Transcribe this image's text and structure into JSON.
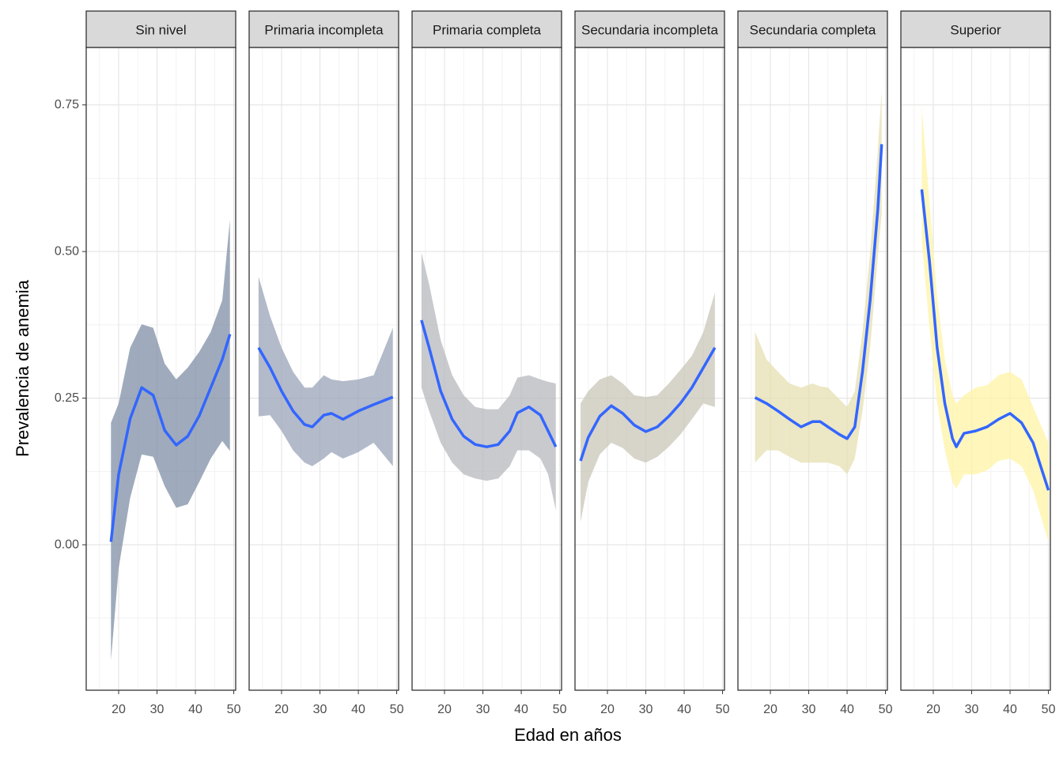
{
  "chart_data": {
    "type": "line",
    "x_label": "Edad en años",
    "y_label": "Prevalencia de anemia",
    "xlim": [
      11.55,
      50.5
    ],
    "ylim": [
      -0.248,
      0.848
    ],
    "xticks": [
      20,
      30,
      40,
      50
    ],
    "yticks": [
      {
        "value": 0,
        "label": "0.00"
      },
      {
        "value": 0.25,
        "label": "0.25"
      },
      {
        "value": 0.5,
        "label": "0.50"
      },
      {
        "value": 0.75,
        "label": "0.75"
      }
    ],
    "xminor": [
      15,
      25,
      35,
      45
    ],
    "yminor": [
      -0.125,
      0.125,
      0.375,
      0.625
    ],
    "grid": true,
    "line_color": "#3366ff",
    "panels": [
      {
        "title": "Sin nivel",
        "color": "#7f8fa6",
        "x": [
          18,
          20,
          23,
          26,
          29,
          32,
          35,
          38,
          41,
          44,
          47,
          49
        ],
        "values": [
          0.005,
          0.12,
          0.215,
          0.268,
          0.255,
          0.195,
          0.17,
          0.185,
          0.22,
          0.268,
          0.316,
          0.359
        ],
        "lower": [
          -0.197,
          -0.04,
          0.08,
          0.154,
          0.15,
          0.1,
          0.063,
          0.069,
          0.107,
          0.147,
          0.177,
          0.16
        ],
        "upper": [
          0.208,
          0.241,
          0.336,
          0.376,
          0.37,
          0.309,
          0.282,
          0.302,
          0.329,
          0.363,
          0.417,
          0.554
        ]
      },
      {
        "title": "Primaria incompleta",
        "color": "#9aa3b8",
        "x": [
          14,
          17,
          20,
          23,
          26,
          28,
          31,
          33,
          36,
          40,
          44,
          49
        ],
        "values": [
          0.336,
          0.302,
          0.262,
          0.228,
          0.205,
          0.201,
          0.221,
          0.224,
          0.214,
          0.228,
          0.239,
          0.252
        ],
        "lower": [
          0.219,
          0.221,
          0.194,
          0.161,
          0.14,
          0.134,
          0.147,
          0.158,
          0.147,
          0.158,
          0.174,
          0.134
        ],
        "upper": [
          0.457,
          0.39,
          0.336,
          0.295,
          0.268,
          0.268,
          0.289,
          0.282,
          0.279,
          0.282,
          0.289,
          0.37
        ]
      },
      {
        "title": "Primaria completa",
        "color": "#b7b8bd",
        "x": [
          14,
          16,
          19,
          22,
          25,
          28,
          31,
          34,
          37,
          39,
          42,
          45,
          47,
          49
        ],
        "values": [
          0.383,
          0.336,
          0.262,
          0.214,
          0.185,
          0.171,
          0.167,
          0.171,
          0.194,
          0.225,
          0.235,
          0.221,
          0.194,
          0.167
        ],
        "lower": [
          0.268,
          0.228,
          0.174,
          0.14,
          0.12,
          0.113,
          0.109,
          0.113,
          0.134,
          0.161,
          0.161,
          0.147,
          0.12,
          0.059
        ],
        "upper": [
          0.498,
          0.444,
          0.349,
          0.289,
          0.255,
          0.235,
          0.231,
          0.231,
          0.255,
          0.285,
          0.289,
          0.282,
          0.278,
          0.275
        ]
      },
      {
        "title": "Secundaria incompleta",
        "color": "#c9c6b8",
        "x": [
          13,
          15,
          18,
          21,
          24,
          27,
          30,
          33,
          36,
          39,
          42,
          45,
          48
        ],
        "values": [
          0.143,
          0.183,
          0.219,
          0.237,
          0.224,
          0.204,
          0.193,
          0.201,
          0.219,
          0.241,
          0.268,
          0.302,
          0.336
        ],
        "lower": [
          0.039,
          0.107,
          0.154,
          0.174,
          0.165,
          0.147,
          0.14,
          0.15,
          0.167,
          0.188,
          0.214,
          0.241,
          0.235
        ],
        "upper": [
          0.241,
          0.262,
          0.282,
          0.289,
          0.275,
          0.255,
          0.252,
          0.255,
          0.275,
          0.298,
          0.322,
          0.363,
          0.43
        ]
      },
      {
        "title": "Secundaria completa",
        "color": "#e6dfb0",
        "x": [
          16,
          19,
          22,
          25,
          28,
          31,
          33,
          35,
          38,
          40,
          42,
          44,
          46,
          48,
          49
        ],
        "values": [
          0.251,
          0.241,
          0.228,
          0.214,
          0.201,
          0.21,
          0.21,
          0.201,
          0.188,
          0.181,
          0.201,
          0.295,
          0.417,
          0.572,
          0.683
        ],
        "lower": [
          0.14,
          0.161,
          0.161,
          0.15,
          0.14,
          0.14,
          0.14,
          0.14,
          0.134,
          0.12,
          0.147,
          0.228,
          0.336,
          0.491,
          0.565
        ],
        "upper": [
          0.363,
          0.316,
          0.295,
          0.275,
          0.268,
          0.275,
          0.27,
          0.268,
          0.248,
          0.235,
          0.262,
          0.363,
          0.498,
          0.673,
          0.774
        ]
      },
      {
        "title": "Superior",
        "color": "#fff3a6",
        "x": [
          17,
          19,
          21,
          23,
          25,
          26,
          28,
          31,
          34,
          37,
          40,
          43,
          46,
          50
        ],
        "values": [
          0.606,
          0.484,
          0.336,
          0.241,
          0.181,
          0.167,
          0.19,
          0.194,
          0.201,
          0.214,
          0.224,
          0.208,
          0.174,
          0.093
        ],
        "lower": [
          0.518,
          0.37,
          0.241,
          0.161,
          0.107,
          0.096,
          0.12,
          0.12,
          0.127,
          0.143,
          0.147,
          0.134,
          0.093,
          0.005
        ],
        "upper": [
          0.747,
          0.585,
          0.424,
          0.316,
          0.255,
          0.241,
          0.255,
          0.268,
          0.272,
          0.289,
          0.295,
          0.282,
          0.235,
          0.174
        ]
      }
    ]
  }
}
